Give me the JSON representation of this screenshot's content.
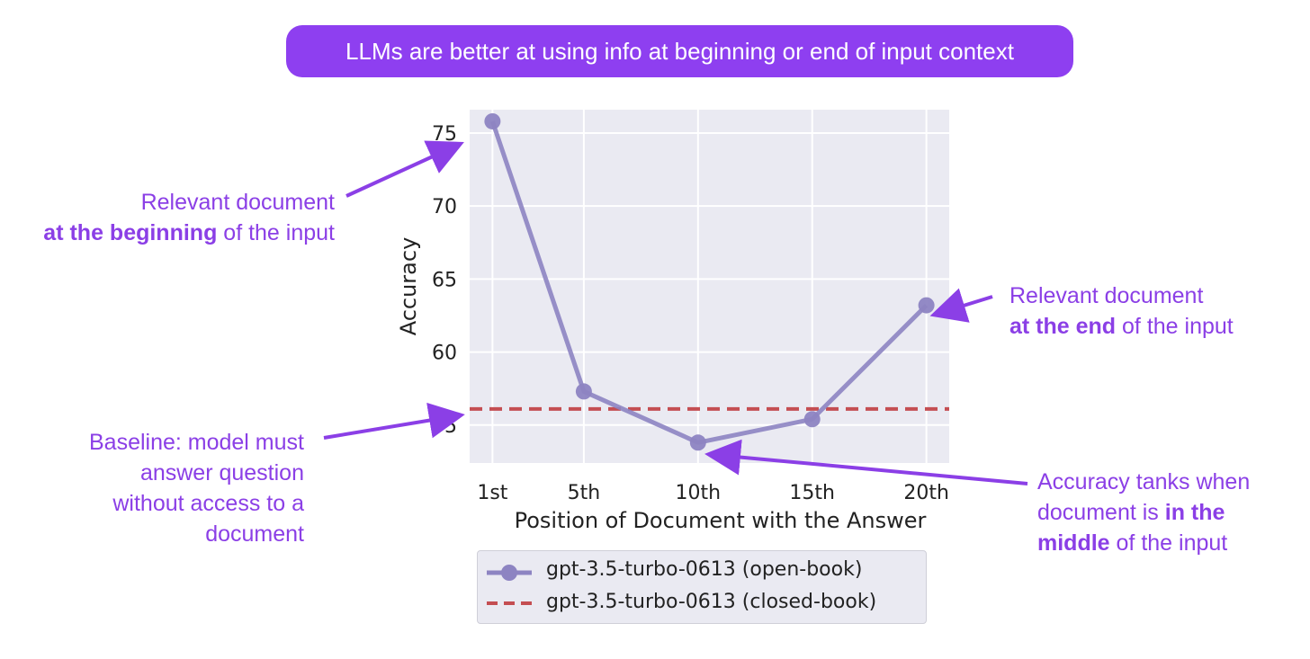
{
  "banner": {
    "title": "LLMs are better at using info at beginning or end of input context"
  },
  "annotations": {
    "beginning": {
      "line1": "Relevant document",
      "bold": "at the beginning",
      "rest": " of the input"
    },
    "end": {
      "line1": "Relevant document",
      "bold": "at the end",
      "rest": " of the input"
    },
    "baseline": {
      "line1": "Baseline: model must",
      "line2": "answer question",
      "line3": "without access to a",
      "line4": "document"
    },
    "middle": {
      "line1": "Accuracy tanks when",
      "line2_pre": "document is ",
      "line2_bold": "in the",
      "line3_bold": "middle",
      "line3_rest": " of the input"
    }
  },
  "colors": {
    "accent": "#8b3fe6",
    "banner": "#8e3ff0",
    "series_open": "#8d84c2",
    "series_closed": "#c44e52",
    "plot_bg": "#eaeaf2"
  },
  "chart_data": {
    "type": "line",
    "x": [
      1,
      5,
      10,
      15,
      20
    ],
    "categories": [
      "1st",
      "5th",
      "10th",
      "15th",
      "20th"
    ],
    "xlabel": "Position of Document with the Answer",
    "ylabel": "Accuracy",
    "ylim": [
      52.4,
      76.6
    ],
    "yticks": [
      55,
      60,
      65,
      70,
      75
    ],
    "grid": true,
    "legend_placement": "bottom-center",
    "series": [
      {
        "name": "gpt-3.5-turbo-0613 (open-book)",
        "style": "solid-marker",
        "values": [
          75.8,
          57.3,
          53.8,
          55.4,
          63.2
        ]
      },
      {
        "name": "gpt-3.5-turbo-0613 (closed-book)",
        "style": "dashed",
        "values": [
          56.1,
          56.1,
          56.1,
          56.1,
          56.1
        ]
      }
    ]
  }
}
